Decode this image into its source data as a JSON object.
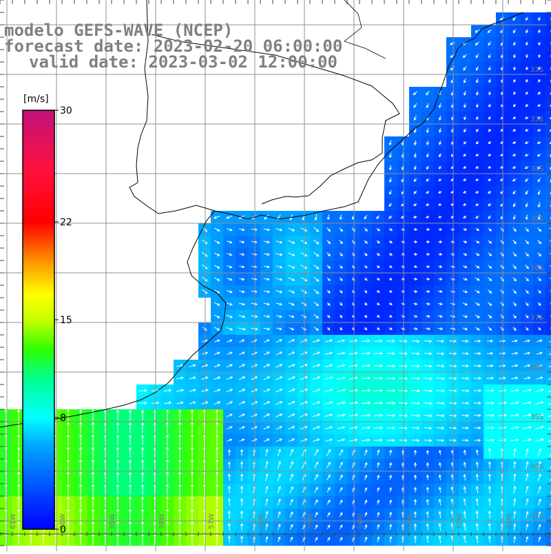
{
  "title": {
    "line1": "modelo GEFS-WAVE (NCEP)",
    "line2": "forecast date: 2023-02-20 06:00:00",
    "line3": "valid date: 2023-03-02 12:00:00"
  },
  "colorbar": {
    "unit": "[m/s]",
    "ticks": [
      "30",
      "22",
      "15",
      "8",
      "0"
    ],
    "tick_values": [
      30,
      22,
      15,
      8,
      0
    ],
    "colors": [
      "#0000ff",
      "#0070ff",
      "#00c0ff",
      "#00ffff",
      "#00ff80",
      "#00ff00",
      "#80ff00",
      "#ffff00",
      "#ff8000",
      "#ff0000",
      "#ff0040",
      "#c01080"
    ]
  },
  "lat_labels": [
    "32S",
    "33S",
    "34S",
    "35S",
    "36S",
    "37S",
    "38S",
    "39S",
    "40S",
    "41S"
  ],
  "lon_labels": [
    "61W",
    "60W",
    "59W",
    "58W",
    "57W",
    "56W",
    "55W",
    "54W",
    "53W",
    "52W",
    "51W"
  ],
  "colors": {
    "land": "#ffffff",
    "grid": "#909090",
    "coast": "#000000",
    "arrow": "#ffffff"
  }
}
